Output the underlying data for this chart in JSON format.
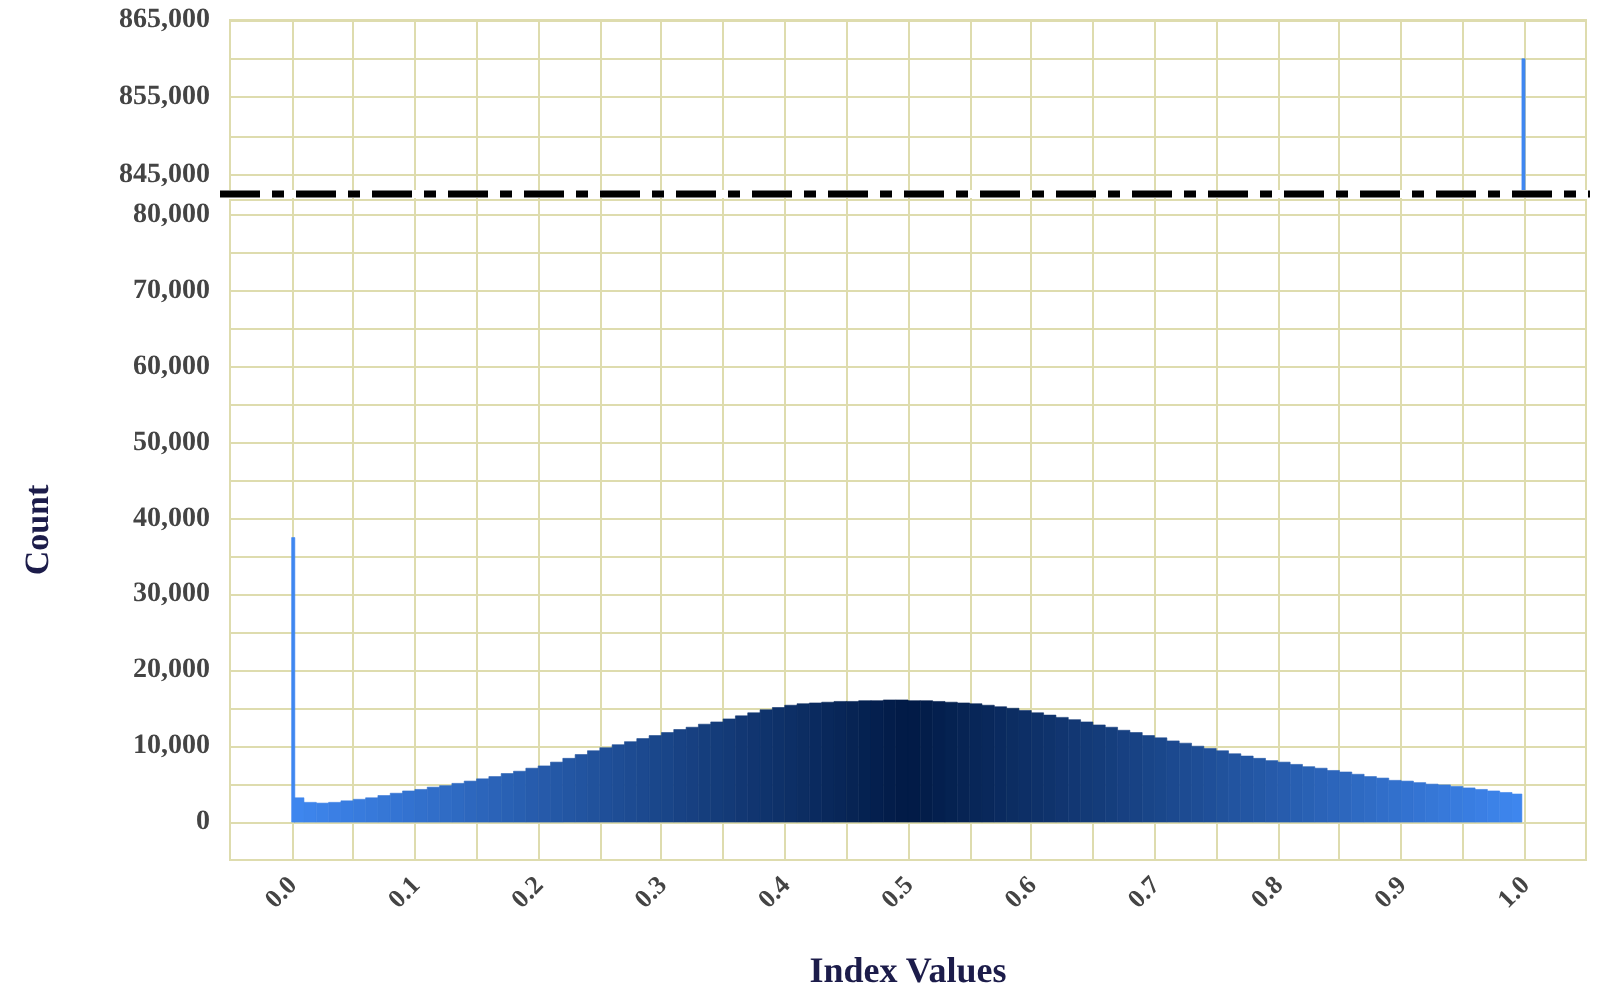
{
  "chart_data": [
    {
      "type": "histogram",
      "bins": [
        0.998,
        1.0
      ],
      "values": [
        860000
      ],
      "color": "#3f87f0",
      "xlim": [
        -0.05,
        1.05
      ],
      "xticks": [
        {
          "value": 0,
          "label": null
        },
        {
          "value": 0.05,
          "label": null
        },
        {
          "value": 0.1,
          "label": null
        },
        {
          "value": 0.15,
          "label": null
        },
        {
          "value": 0.2,
          "label": null
        },
        {
          "value": 0.25,
          "label": null
        },
        {
          "value": 0.3,
          "label": null
        },
        {
          "value": 0.35,
          "label": null
        },
        {
          "value": 0.4,
          "label": null
        },
        {
          "value": 0.45,
          "label": null
        },
        {
          "value": 0.5,
          "label": null
        },
        {
          "value": 0.55,
          "label": null
        },
        {
          "value": 0.6,
          "label": null
        },
        {
          "value": 0.65,
          "label": null
        },
        {
          "value": 0.7,
          "label": null
        },
        {
          "value": 0.75,
          "label": null
        },
        {
          "value": 0.8,
          "label": null
        },
        {
          "value": 0.85,
          "label": null
        },
        {
          "value": 0.9,
          "label": null
        },
        {
          "value": 0.95,
          "label": null
        },
        {
          "value": 1,
          "label": null
        }
      ],
      "ylim": [
        842500,
        865000
      ],
      "yticks": [
        {
          "value": 845000,
          "label": "845,000"
        },
        {
          "value": 850000,
          "label": null
        },
        {
          "value": 855000,
          "label": "855,000"
        },
        {
          "value": 860000,
          "label": null
        },
        {
          "value": 865000,
          "label": "865,000"
        }
      ],
      "grid": true,
      "tick_labels": "y"
    },
    {
      "type": "histogram",
      "bins": [
        0,
        0.002,
        0.01,
        0.02,
        0.03,
        0.04,
        0.05,
        0.06,
        0.07,
        0.08,
        0.09,
        0.1,
        0.11,
        0.12,
        0.13,
        0.14,
        0.15,
        0.16,
        0.17,
        0.18,
        0.19,
        0.2,
        0.21,
        0.22,
        0.23,
        0.24,
        0.25,
        0.26,
        0.27,
        0.28,
        0.29,
        0.3,
        0.31,
        0.32,
        0.33,
        0.34,
        0.35,
        0.36,
        0.37,
        0.38,
        0.39,
        0.4,
        0.41,
        0.42,
        0.43,
        0.44,
        0.45,
        0.46,
        0.47,
        0.48,
        0.49,
        0.5,
        0.51,
        0.52,
        0.53,
        0.54,
        0.55,
        0.56,
        0.57,
        0.58,
        0.59,
        0.6,
        0.61,
        0.62,
        0.63,
        0.64,
        0.65,
        0.66,
        0.67,
        0.68,
        0.69,
        0.7,
        0.71,
        0.72,
        0.73,
        0.74,
        0.75,
        0.76,
        0.77,
        0.78,
        0.79,
        0.8,
        0.81,
        0.82,
        0.83,
        0.84,
        0.85,
        0.86,
        0.87,
        0.88,
        0.89,
        0.9,
        0.91,
        0.92,
        0.93,
        0.94,
        0.95,
        0.96,
        0.97,
        0.98,
        0.99,
        0.998
      ],
      "values": [
        37500,
        3200,
        2600,
        2500,
        2600,
        2800,
        3000,
        3200,
        3500,
        3800,
        4100,
        4300,
        4600,
        4800,
        5100,
        5400,
        5700,
        6000,
        6400,
        6700,
        7100,
        7400,
        7900,
        8400,
        8900,
        9400,
        9800,
        10200,
        10600,
        11000,
        11400,
        11800,
        12200,
        12500,
        12900,
        13200,
        13600,
        14000,
        14400,
        14800,
        15100,
        15400,
        15600,
        15700,
        15800,
        15900,
        15900,
        16000,
        16000,
        16100,
        16100,
        16000,
        16000,
        15900,
        15800,
        15700,
        15600,
        15400,
        15200,
        15000,
        14700,
        14400,
        14100,
        13800,
        13500,
        13200,
        12800,
        12500,
        12100,
        11800,
        11400,
        11100,
        10700,
        10400,
        10000,
        9700,
        9400,
        9000,
        8700,
        8400,
        8100,
        7900,
        7600,
        7300,
        7100,
        6800,
        6600,
        6300,
        6000,
        5800,
        5500,
        5400,
        5200,
        5000,
        4900,
        4700,
        4500,
        4300,
        4100,
        3900,
        3700
      ],
      "colors": [
        "#3f87f0",
        "#3e86ee",
        "#3d84eb",
        "#3c82e7",
        "#3b7fe4",
        "#397de1",
        "#387bdd",
        "#3779da",
        "#3677d6",
        "#3474d3",
        "#3372d0",
        "#3270cc",
        "#316ec9",
        "#306cc5",
        "#2e6ac2",
        "#2d67be",
        "#2c65bb",
        "#2b63b8",
        "#2961b4",
        "#285fb1",
        "#275cad",
        "#265aaa",
        "#2458a6",
        "#2356a3",
        "#2254a0",
        "#21529c",
        "#1f4f99",
        "#1e4d95",
        "#1d4b92",
        "#1c498f",
        "#1a478b",
        "#194588",
        "#184284",
        "#174081",
        "#153e7d",
        "#143c7a",
        "#133a77",
        "#123773",
        "#113570",
        "#0f336c",
        "#0e3169",
        "#0d2f66",
        "#0c2d62",
        "#0a2a5f",
        "#09285b",
        "#082658",
        "#072454",
        "#052251",
        "#041f4e",
        "#031d4a",
        "#021b47",
        "#021b47",
        "#031d4a",
        "#041f4e",
        "#052251",
        "#072454",
        "#082658",
        "#09285b",
        "#0a2a5f",
        "#0c2d62",
        "#0d2f66",
        "#0e3169",
        "#0f336c",
        "#113570",
        "#123773",
        "#133a77",
        "#143c7a",
        "#153e7d",
        "#174081",
        "#184284",
        "#194588",
        "#1a478b",
        "#1c498f",
        "#1d4b92",
        "#1e4d95",
        "#1f4f99",
        "#21529c",
        "#2254a0",
        "#2356a3",
        "#2458a6",
        "#265aaa",
        "#275cad",
        "#285fb1",
        "#2961b4",
        "#2b63b8",
        "#2c65bb",
        "#2d67be",
        "#2e6ac2",
        "#306cc5",
        "#316ec9",
        "#3270cc",
        "#3372d0",
        "#3474d3",
        "#3677d6",
        "#3779da",
        "#387bdd",
        "#397de1",
        "#3b7fe4",
        "#3c82e7",
        "#3d84eb",
        "#3e86ee"
      ],
      "xlim": [
        -0.05,
        1.05
      ],
      "xticks": [
        {
          "value": 0,
          "label": "0.0"
        },
        {
          "value": 0.05,
          "label": null
        },
        {
          "value": 0.1,
          "label": "0.1"
        },
        {
          "value": 0.15,
          "label": null
        },
        {
          "value": 0.2,
          "label": "0.2"
        },
        {
          "value": 0.25,
          "label": null
        },
        {
          "value": 0.3,
          "label": "0.3"
        },
        {
          "value": 0.35,
          "label": null
        },
        {
          "value": 0.4,
          "label": "0.4"
        },
        {
          "value": 0.45,
          "label": null
        },
        {
          "value": 0.5,
          "label": "0.5"
        },
        {
          "value": 0.55,
          "label": null
        },
        {
          "value": 0.6,
          "label": "0.6"
        },
        {
          "value": 0.65,
          "label": null
        },
        {
          "value": 0.7,
          "label": "0.7"
        },
        {
          "value": 0.75,
          "label": null
        },
        {
          "value": 0.8,
          "label": "0.8"
        },
        {
          "value": 0.85,
          "label": null
        },
        {
          "value": 0.9,
          "label": "0.9"
        },
        {
          "value": 0.95,
          "label": null
        },
        {
          "value": 1,
          "label": "1.0"
        }
      ],
      "ylim": [
        -5000,
        82000
      ],
      "yticks": [
        0,
        {
          "value": 5000,
          "label": null
        },
        {
          "value": 10000,
          "label": "10,000"
        },
        {
          "value": 15000,
          "label": null
        },
        {
          "value": 20000,
          "label": "20,000"
        },
        {
          "value": 25000,
          "label": null
        },
        {
          "value": 30000,
          "label": "30,000"
        },
        {
          "value": 35000,
          "label": null
        },
        {
          "value": 40000,
          "label": "40,000"
        },
        {
          "value": 45000,
          "label": null
        },
        {
          "value": 50000,
          "label": "50,000"
        },
        {
          "value": 55000,
          "label": null
        },
        {
          "value": 60000,
          "label": "60,000"
        },
        {
          "value": 65000,
          "label": null
        },
        {
          "value": 70000,
          "label": "70,000"
        },
        {
          "value": 75000,
          "label": null
        },
        {
          "value": 80000,
          "label": "80,000"
        }
      ],
      "xlabel": "Index Values",
      "ylabel": "Count",
      "grid": true
    }
  ]
}
